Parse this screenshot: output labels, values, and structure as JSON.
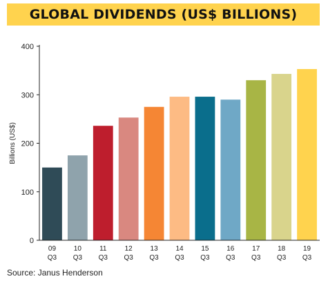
{
  "chart_data": {
    "type": "bar",
    "title": "GLOBAL DIVIDENDS (US$ BILLIONS)",
    "ylabel": "Billions (US$)",
    "xlabel": "",
    "ylim": [
      0,
      400
    ],
    "yticks": [
      0,
      100,
      200,
      300,
      400
    ],
    "grid": false,
    "categories": [
      {
        "line1": "09",
        "line2": "Q3"
      },
      {
        "line1": "10",
        "line2": "Q3"
      },
      {
        "line1": "11",
        "line2": "Q3"
      },
      {
        "line1": "12",
        "line2": "Q3"
      },
      {
        "line1": "13",
        "line2": "Q3"
      },
      {
        "line1": "14",
        "line2": "Q3"
      },
      {
        "line1": "15",
        "line2": "Q3"
      },
      {
        "line1": "16",
        "line2": "Q3"
      },
      {
        "line1": "17",
        "line2": "Q3"
      },
      {
        "line1": "18",
        "line2": "Q3"
      },
      {
        "line1": "19",
        "line2": "Q3"
      }
    ],
    "values": [
      150,
      175,
      236,
      253,
      275,
      296,
      296,
      290,
      330,
      343,
      353
    ],
    "colors": [
      "#2F4B57",
      "#8FA3AC",
      "#BE1E2D",
      "#D98880",
      "#F58634",
      "#FDBB84",
      "#0A6E8C",
      "#6FA8C6",
      "#A8B545",
      "#D9D48C",
      "#FFD34E"
    ]
  },
  "source": "Source: Janus Henderson"
}
